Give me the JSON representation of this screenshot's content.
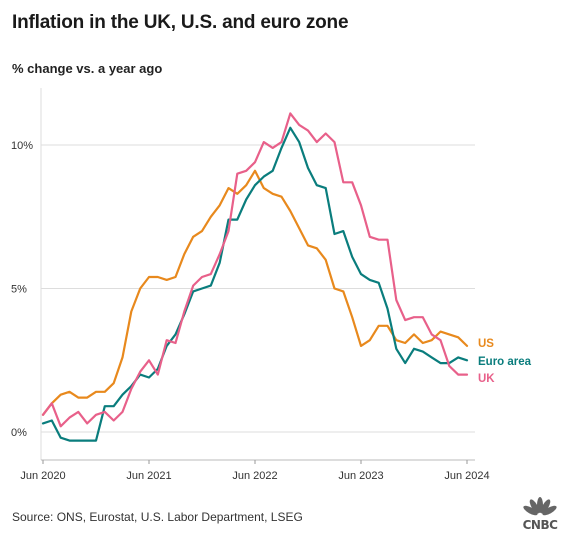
{
  "title": "Inflation in the UK, U.S. and euro zone",
  "subtitle": "% change vs. a year ago",
  "source": "Source: ONS, Eurostat, U.S. Labor Department, LSEG",
  "logo_text": "CNBC",
  "chart_data": {
    "type": "line",
    "title": "Inflation in the UK, U.S. and euro zone",
    "ylabel": "% change vs. a year ago",
    "xlabel": "",
    "x": [
      "2020-06",
      "2020-07",
      "2020-08",
      "2020-09",
      "2020-10",
      "2020-11",
      "2020-12",
      "2021-01",
      "2021-02",
      "2021-03",
      "2021-04",
      "2021-05",
      "2021-06",
      "2021-07",
      "2021-08",
      "2021-09",
      "2021-10",
      "2021-11",
      "2021-12",
      "2022-01",
      "2022-02",
      "2022-03",
      "2022-04",
      "2022-05",
      "2022-06",
      "2022-07",
      "2022-08",
      "2022-09",
      "2022-10",
      "2022-11",
      "2022-12",
      "2023-01",
      "2023-02",
      "2023-03",
      "2023-04",
      "2023-05",
      "2023-06",
      "2023-07",
      "2023-08",
      "2023-09",
      "2023-10",
      "2023-11",
      "2023-12",
      "2024-01",
      "2024-02",
      "2024-03",
      "2024-04",
      "2024-05",
      "2024-06"
    ],
    "x_ticks": [
      "Jun 2020",
      "Jun 2021",
      "Jun 2022",
      "Jun 2023",
      "Jun 2024"
    ],
    "y_ticks": [
      "0%",
      "5%",
      "10%"
    ],
    "y_tick_values": [
      0,
      5,
      10
    ],
    "ylim": [
      -1,
      12
    ],
    "grid": "horizontal",
    "legend": "right, labels at line ends",
    "series": [
      {
        "name": "US",
        "color": "#e8891d",
        "values": [
          0.6,
          1.0,
          1.3,
          1.4,
          1.2,
          1.2,
          1.4,
          1.4,
          1.7,
          2.6,
          4.2,
          5.0,
          5.4,
          5.4,
          5.3,
          5.4,
          6.2,
          6.8,
          7.0,
          7.5,
          7.9,
          8.5,
          8.3,
          8.6,
          9.1,
          8.5,
          8.3,
          8.2,
          7.7,
          7.1,
          6.5,
          6.4,
          6.0,
          5.0,
          4.9,
          4.0,
          3.0,
          3.2,
          3.7,
          3.7,
          3.2,
          3.1,
          3.4,
          3.1,
          3.2,
          3.5,
          3.4,
          3.3,
          3.0
        ]
      },
      {
        "name": "Euro area",
        "color": "#0a7d7d",
        "values": [
          0.3,
          0.4,
          -0.2,
          -0.3,
          -0.3,
          -0.3,
          -0.3,
          0.9,
          0.9,
          1.3,
          1.6,
          2.0,
          1.9,
          2.2,
          3.0,
          3.4,
          4.1,
          4.9,
          5.0,
          5.1,
          5.9,
          7.4,
          7.4,
          8.1,
          8.6,
          8.9,
          9.1,
          9.9,
          10.6,
          10.1,
          9.2,
          8.6,
          8.5,
          6.9,
          7.0,
          6.1,
          5.5,
          5.3,
          5.2,
          4.3,
          2.9,
          2.4,
          2.9,
          2.8,
          2.6,
          2.4,
          2.4,
          2.6,
          2.5
        ]
      },
      {
        "name": "UK",
        "color": "#e8608a",
        "values": [
          0.6,
          1.0,
          0.2,
          0.5,
          0.7,
          0.3,
          0.6,
          0.7,
          0.4,
          0.7,
          1.5,
          2.1,
          2.5,
          2.0,
          3.2,
          3.1,
          4.2,
          5.1,
          5.4,
          5.5,
          6.2,
          7.0,
          9.0,
          9.1,
          9.4,
          10.1,
          9.9,
          10.1,
          11.1,
          10.7,
          10.5,
          10.1,
          10.4,
          10.1,
          8.7,
          8.7,
          7.9,
          6.8,
          6.7,
          6.7,
          4.6,
          3.9,
          4.0,
          4.0,
          3.4,
          3.2,
          2.3,
          2.0,
          2.0
        ]
      }
    ]
  }
}
